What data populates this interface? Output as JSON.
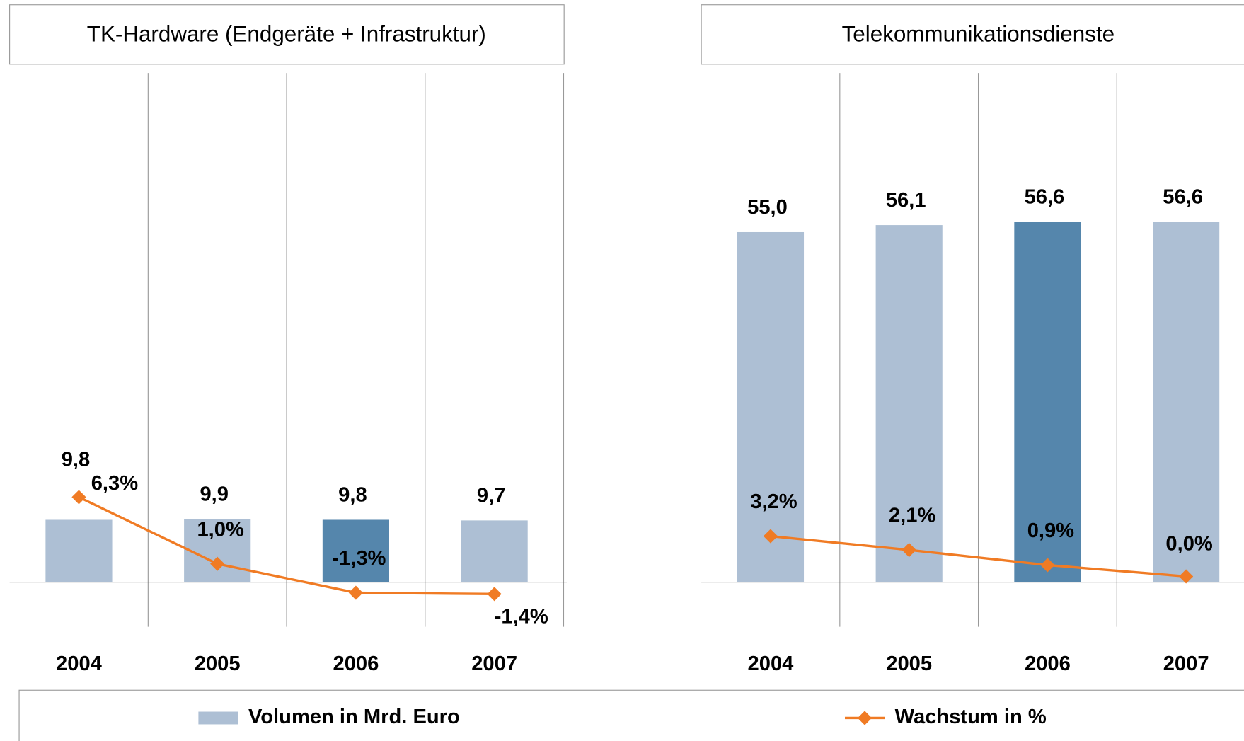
{
  "chart_data": [
    {
      "type": "bar",
      "title": "TK-Hardware (Endgeräte + Infrastruktur)",
      "categories": [
        "2004",
        "2005",
        "2006",
        "2007"
      ],
      "ylim": [
        -7,
        80
      ],
      "y2lim": [
        -4,
        40
      ],
      "grid": true,
      "series": [
        {
          "name": "Volumen in Mrd. Euro",
          "type": "bar",
          "color": "#adbfd4",
          "colors": [
            "#adbfd4",
            "#adbfd4",
            "#5586ac",
            "#adbfd4"
          ],
          "values": [
            9.8,
            9.9,
            9.8,
            9.7
          ],
          "value_labels": [
            "9,8",
            "9,9",
            "9,8",
            "9,7"
          ]
        },
        {
          "name": "Wachstum in %",
          "type": "line",
          "axis": "y2",
          "color": "#f07b24",
          "values": [
            6.3,
            1.0,
            -1.3,
            -1.4
          ],
          "value_labels": [
            "6,3%",
            "1,0%",
            "-1,3%",
            "-1,4%"
          ]
        }
      ]
    },
    {
      "type": "bar",
      "title": "Telekommunikationsdienste",
      "categories": [
        "2004",
        "2005",
        "2006",
        "2007"
      ],
      "ylim": [
        -7,
        80
      ],
      "y2lim": [
        -4,
        40
      ],
      "grid": true,
      "series": [
        {
          "type": "bar",
          "color": "#adbfd4",
          "colors": [
            "#adbfd4",
            "#adbfd4",
            "#5586ac",
            "#adbfd4"
          ],
          "values": [
            55.0,
            56.1,
            56.6,
            56.6
          ],
          "value_labels": [
            "55,0",
            "56,1",
            "56,6",
            "56,6"
          ]
        },
        {
          "type": "line",
          "axis": "y2",
          "color": "#f07b24",
          "values": [
            3.2,
            2.1,
            0.9,
            0.0
          ],
          "value_labels": [
            "3,2%",
            "2,1%",
            "0,9%",
            "0,0%"
          ]
        }
      ]
    }
  ]
}
